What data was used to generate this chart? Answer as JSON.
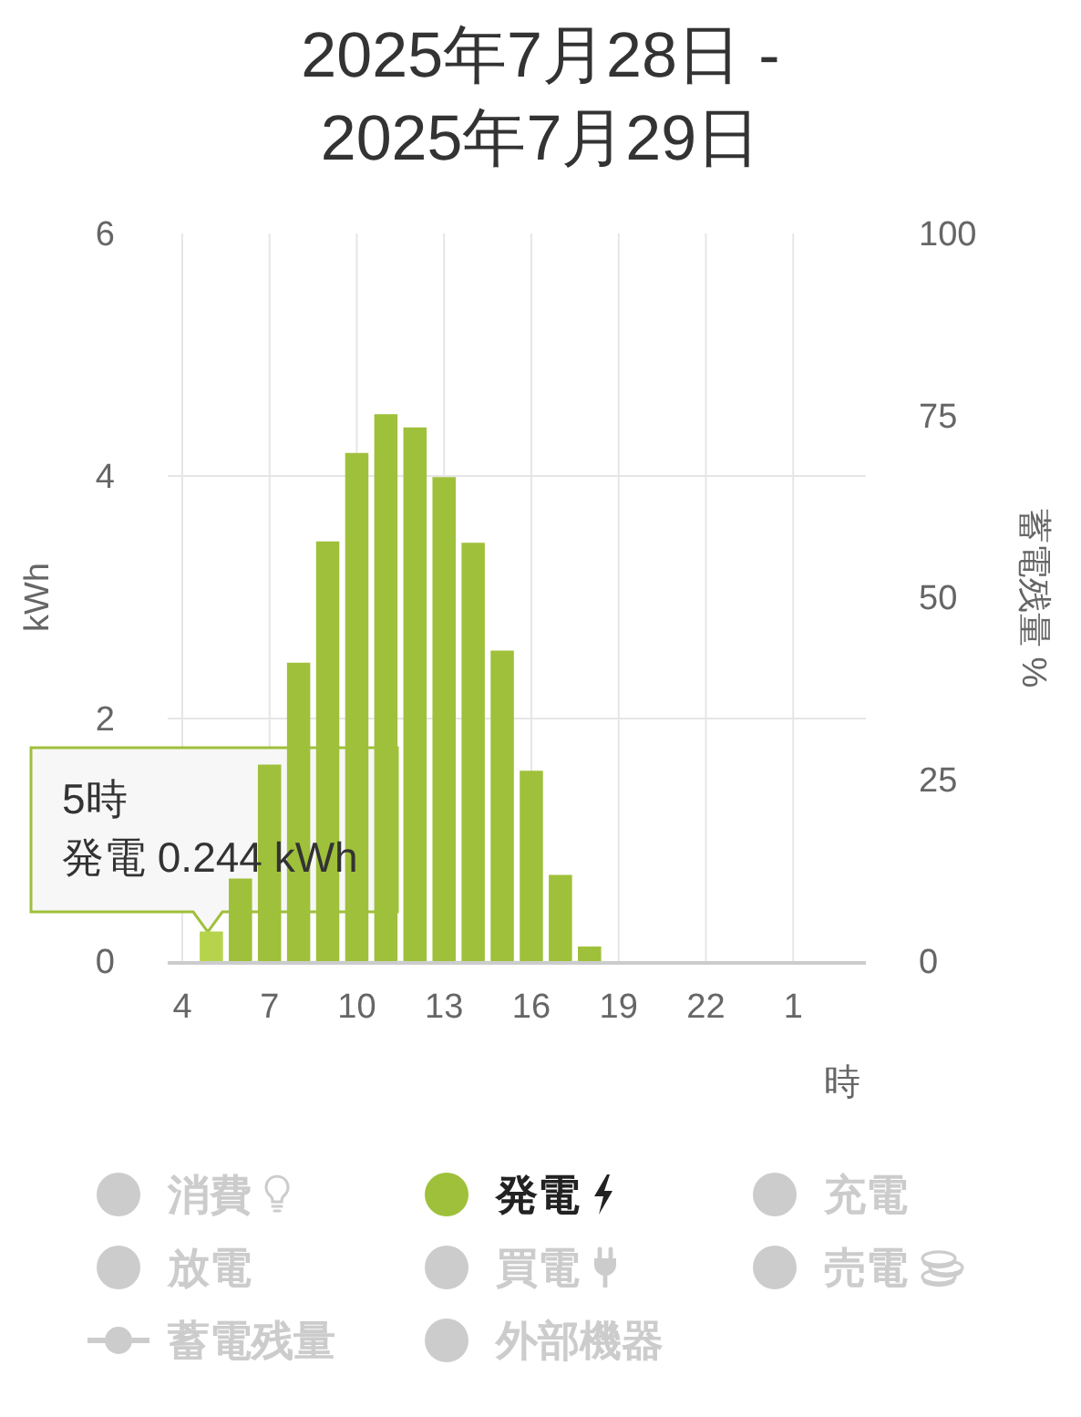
{
  "chart_data": {
    "type": "bar",
    "title": "2025年7月28日 -\n2025年7月29日",
    "xlabel": "時",
    "ylabel": "kWh",
    "y2label": "蓄電残量 %",
    "categories": [
      "4",
      null,
      null,
      "7",
      null,
      null,
      "10",
      null,
      null,
      "13",
      null,
      null,
      "16",
      null,
      null,
      "19",
      null,
      null,
      "22",
      null,
      null,
      "1",
      null,
      null
    ],
    "series": [
      {
        "name": "消費",
        "color": "#cccccc",
        "values": [
          null,
          null,
          null,
          null,
          null,
          null,
          null,
          null,
          null,
          null,
          null,
          null,
          null,
          null,
          null,
          null,
          null,
          null,
          null,
          null,
          null,
          null,
          null,
          null
        ]
      },
      {
        "name": "発電",
        "color": "#9fc03a",
        "colors": [
          "#9fc03a",
          "#b5d44c",
          "#9fc03a",
          "#9fc03a",
          "#9fc03a",
          "#9fc03a",
          "#9fc03a",
          "#9fc03a",
          "#9fc03a",
          "#9fc03a",
          "#9fc03a",
          "#9fc03a",
          "#9fc03a",
          "#9fc03a",
          "#9fc03a",
          "#9fc03a",
          "#9fc03a",
          "#9fc03a",
          "#9fc03a",
          "#9fc03a",
          "#9fc03a",
          "#9fc03a",
          "#9fc03a",
          "#9fc03a"
        ],
        "values": [
          0,
          0.244,
          0.68,
          1.62,
          2.46,
          3.46,
          4.19,
          4.51,
          4.4,
          3.99,
          3.45,
          2.56,
          1.57,
          0.71,
          0.12,
          0,
          0,
          0,
          0,
          0,
          0,
          0,
          0,
          0
        ]
      },
      {
        "name": "充電",
        "color": "#cccccc",
        "values": [
          null,
          null,
          null,
          null,
          null,
          null,
          null,
          null,
          null,
          null,
          null,
          null,
          null,
          null,
          null,
          null,
          null,
          null,
          null,
          null,
          null,
          null,
          null,
          null
        ]
      },
      {
        "name": "放電",
        "color": "#cccccc",
        "values": [
          null,
          null,
          null,
          null,
          null,
          null,
          null,
          null,
          null,
          null,
          null,
          null,
          null,
          null,
          null,
          null,
          null,
          null,
          null,
          null,
          null,
          null,
          null,
          null
        ]
      },
      {
        "name": "買電",
        "color": "#cccccc",
        "values": [
          null,
          null,
          null,
          null,
          null,
          null,
          null,
          null,
          null,
          null,
          null,
          null,
          null,
          null,
          null,
          null,
          null,
          null,
          null,
          null,
          null,
          null,
          null,
          null
        ]
      },
      {
        "name": "売電",
        "color": "#cccccc",
        "values": [
          null,
          null,
          null,
          null,
          null,
          null,
          null,
          null,
          null,
          null,
          null,
          null,
          null,
          null,
          null,
          null,
          null,
          null,
          null,
          null,
          null,
          null,
          null,
          null
        ]
      },
      {
        "name": "蓄電残量",
        "type": "line",
        "axis": "y2",
        "marker": "circle",
        "color": "#cccccc",
        "values": [
          null,
          null,
          null,
          null,
          null,
          null,
          null,
          null,
          null,
          null,
          null,
          null,
          null,
          null,
          null,
          null,
          null,
          null,
          null,
          null,
          null,
          null,
          null,
          null
        ]
      },
      {
        "name": "外部機器",
        "color": "#cccccc",
        "values": [
          null,
          null,
          null,
          null,
          null,
          null,
          null,
          null,
          null,
          null,
          null,
          null,
          null,
          null,
          null,
          null,
          null,
          null,
          null,
          null,
          null,
          null,
          null,
          null
        ]
      }
    ],
    "ylim": [
      0,
      6
    ],
    "yticks": [
      0,
      2,
      4,
      6
    ],
    "y2lim": [
      0,
      100
    ],
    "y2ticks": [
      0,
      25,
      50,
      75,
      100
    ],
    "grid": true,
    "legend": "bottom",
    "annotations": [
      "5時",
      "発電 0.244 kWh"
    ]
  }
}
